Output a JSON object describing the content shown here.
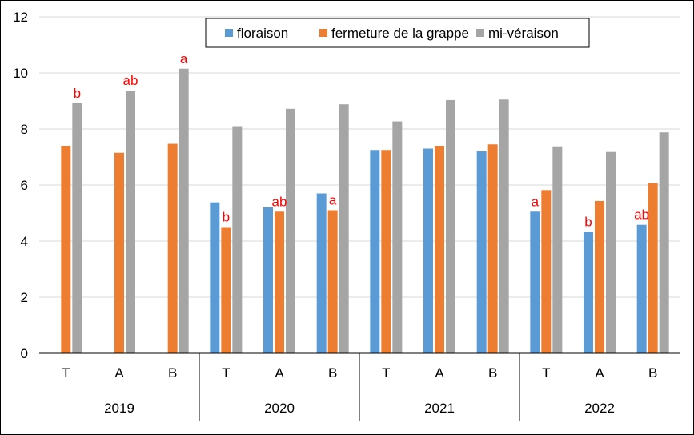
{
  "chart_data": {
    "type": "bar",
    "title": "",
    "xlabel": "",
    "ylabel": "",
    "ylim": [
      0,
      12
    ],
    "yticks": [
      0,
      2,
      4,
      6,
      8,
      10,
      12
    ],
    "grid": true,
    "legend_position": "top-right",
    "groups": [
      {
        "label": "2019",
        "categories": [
          "T",
          "A",
          "B"
        ]
      },
      {
        "label": "2020",
        "categories": [
          "T",
          "A",
          "B"
        ]
      },
      {
        "label": "2021",
        "categories": [
          "T",
          "A",
          "B"
        ]
      },
      {
        "label": "2022",
        "categories": [
          "T",
          "A",
          "B"
        ]
      }
    ],
    "series": [
      {
        "name": "floraison",
        "color": "#5B9BD5",
        "values": [
          null,
          null,
          null,
          5.38,
          5.2,
          5.7,
          7.25,
          7.3,
          7.2,
          5.05,
          4.33,
          4.58
        ]
      },
      {
        "name": "fermeture de la grappe",
        "color": "#ED7D31",
        "values": [
          7.4,
          7.15,
          7.47,
          4.5,
          5.05,
          5.1,
          7.25,
          7.4,
          7.45,
          5.82,
          5.43,
          6.07
        ]
      },
      {
        "name": "mi-véraison",
        "color": "#A5A5A5",
        "values": [
          8.92,
          9.37,
          10.15,
          8.1,
          8.72,
          8.88,
          8.27,
          9.03,
          9.05,
          7.38,
          7.18,
          7.88
        ]
      }
    ],
    "annotations": [
      {
        "group_index": 0,
        "category_index": 0,
        "series": "mi-véraison",
        "text": "b"
      },
      {
        "group_index": 0,
        "category_index": 1,
        "series": "mi-véraison",
        "text": "ab"
      },
      {
        "group_index": 0,
        "category_index": 2,
        "series": "mi-véraison",
        "text": "a"
      },
      {
        "group_index": 1,
        "category_index": 0,
        "series": "fermeture de la grappe",
        "text": "b"
      },
      {
        "group_index": 1,
        "category_index": 1,
        "series": "fermeture de la grappe",
        "text": "ab"
      },
      {
        "group_index": 1,
        "category_index": 2,
        "series": "fermeture de la grappe",
        "text": "a"
      },
      {
        "group_index": 3,
        "category_index": 0,
        "series": "floraison",
        "text": "a"
      },
      {
        "group_index": 3,
        "category_index": 1,
        "series": "floraison",
        "text": "b"
      },
      {
        "group_index": 3,
        "category_index": 2,
        "series": "floraison",
        "text": "ab"
      }
    ],
    "annotation_color": "#FF0000",
    "gridline_color": "#D9D9D9",
    "axis_color": "#000000"
  }
}
